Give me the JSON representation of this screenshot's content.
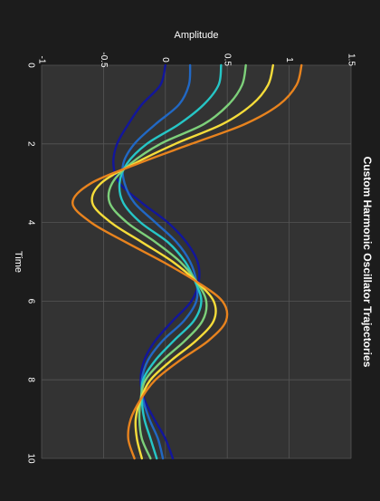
{
  "chart_data": {
    "type": "line",
    "title": "Custom Harmonic Oscillator Trajectories",
    "xlabel": "Time",
    "ylabel": "Amplitude",
    "xlim": [
      0,
      10
    ],
    "ylim": [
      -1,
      1.5
    ],
    "x_ticks": [
      "0",
      "2",
      "4",
      "6",
      "8",
      "10"
    ],
    "y_ticks": [
      "-1",
      "-0.5",
      "0",
      "0.5",
      "1",
      "1.5"
    ],
    "grid": true,
    "orientation": "rotated-90-clockwise",
    "colors": {
      "background": "#1c1c1c",
      "plot_area": "#333333",
      "grid": "#555555",
      "text": "#ffffff"
    },
    "series": [
      {
        "color": "#12169b",
        "x": [
          0,
          0.5,
          1,
          1.5,
          2,
          2.5,
          3,
          3.5,
          4,
          4.5,
          5,
          5.5,
          6,
          6.5,
          7,
          7.5,
          8,
          8.5,
          9,
          9.5,
          10
        ],
        "values": [
          0.0,
          -0.04,
          -0.19,
          -0.3,
          -0.39,
          -0.42,
          -0.37,
          -0.19,
          0.02,
          0.17,
          0.26,
          0.27,
          0.21,
          0.06,
          -0.08,
          -0.17,
          -0.2,
          -0.17,
          -0.09,
          0.0,
          0.06
        ]
      },
      {
        "color": "#2168c4",
        "x": [
          0,
          0.5,
          1,
          1.5,
          2,
          2.5,
          3,
          3.5,
          4,
          4.5,
          5,
          5.5,
          6,
          6.5,
          7,
          7.5,
          8,
          8.5,
          9,
          9.5,
          10
        ],
        "values": [
          0.2,
          0.19,
          0.11,
          -0.08,
          -0.25,
          -0.34,
          -0.33,
          -0.25,
          -0.08,
          0.09,
          0.2,
          0.25,
          0.25,
          0.15,
          -0.02,
          -0.14,
          -0.19,
          -0.18,
          -0.13,
          -0.06,
          -0.02
        ]
      },
      {
        "color": "#26c6c6",
        "x": [
          0,
          0.5,
          1,
          1.5,
          2,
          2.5,
          3,
          3.5,
          4,
          4.5,
          5,
          5.5,
          6,
          6.5,
          7,
          7.5,
          8,
          8.5,
          9,
          9.5,
          10
        ],
        "values": [
          0.45,
          0.43,
          0.31,
          0.11,
          -0.15,
          -0.31,
          -0.37,
          -0.34,
          -0.2,
          0.02,
          0.16,
          0.24,
          0.29,
          0.23,
          0.07,
          -0.08,
          -0.18,
          -0.19,
          -0.17,
          -0.12,
          -0.07
        ]
      },
      {
        "color": "#7dd07a",
        "x": [
          0,
          0.5,
          1,
          1.5,
          2,
          2.5,
          3,
          3.5,
          4,
          4.5,
          5,
          5.5,
          6,
          6.5,
          7,
          7.5,
          8,
          8.5,
          9,
          9.5,
          10
        ],
        "values": [
          0.65,
          0.62,
          0.51,
          0.31,
          -0.04,
          -0.28,
          -0.43,
          -0.45,
          -0.31,
          -0.08,
          0.12,
          0.25,
          0.33,
          0.3,
          0.16,
          -0.02,
          -0.16,
          -0.2,
          -0.21,
          -0.19,
          -0.12
        ]
      },
      {
        "color": "#f5dc3a",
        "x": [
          0,
          0.5,
          1,
          1.5,
          2,
          2.5,
          3,
          3.5,
          4,
          4.5,
          5,
          5.5,
          6,
          6.5,
          7,
          7.5,
          8,
          8.5,
          9,
          9.5,
          10
        ],
        "values": [
          0.87,
          0.83,
          0.7,
          0.46,
          0.08,
          -0.25,
          -0.52,
          -0.59,
          -0.44,
          -0.19,
          0.06,
          0.25,
          0.39,
          0.39,
          0.25,
          0.05,
          -0.12,
          -0.2,
          -0.24,
          -0.23,
          -0.19
        ]
      },
      {
        "color": "#e8831e",
        "x": [
          0,
          0.5,
          1,
          1.5,
          2,
          2.5,
          3,
          3.5,
          4,
          4.5,
          5,
          5.5,
          6,
          6.5,
          7,
          7.5,
          8,
          8.5,
          9,
          9.5,
          10
        ],
        "values": [
          1.1,
          1.06,
          0.92,
          0.64,
          0.21,
          -0.22,
          -0.6,
          -0.75,
          -0.6,
          -0.32,
          -0.02,
          0.25,
          0.46,
          0.49,
          0.35,
          0.12,
          -0.08,
          -0.2,
          -0.28,
          -0.3,
          -0.25
        ]
      }
    ]
  }
}
